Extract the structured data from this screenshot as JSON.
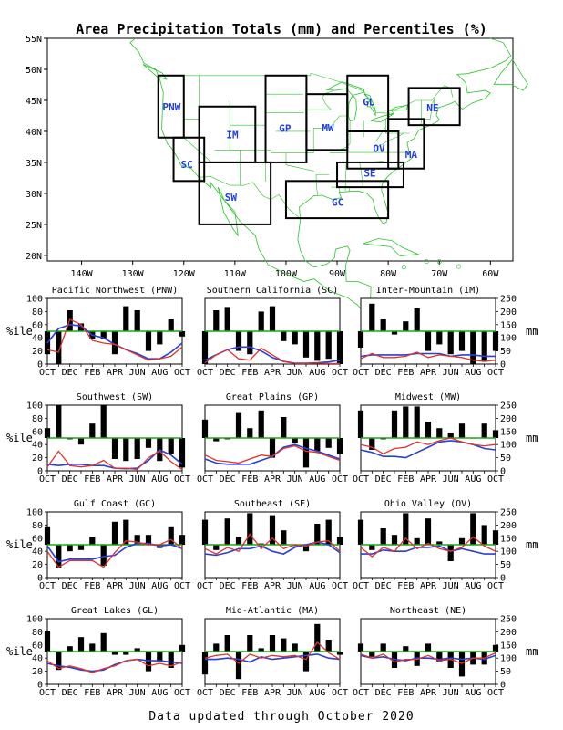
{
  "title": "Area Precipitation Totals (mm) and Percentiles (%)",
  "footer": "Data updated through October 2020",
  "map": {
    "lat_ticks": [
      "55N",
      "50N",
      "45N",
      "40N",
      "35N",
      "30N",
      "25N",
      "20N"
    ],
    "lon_ticks": [
      "140W",
      "130W",
      "120W",
      "110W",
      "100W",
      "90W",
      "80W",
      "70W",
      "60W"
    ],
    "regions": [
      "PNW",
      "SC",
      "IM",
      "SW",
      "GP",
      "MW",
      "GL",
      "OV",
      "SE",
      "GC",
      "MA",
      "NE"
    ]
  },
  "axis": {
    "left_label": "%ile",
    "right_label": "mm",
    "left_ticks": [
      "0",
      "20",
      "40",
      "60",
      "80",
      "100"
    ],
    "right_ticks": [
      "0",
      "50",
      "100",
      "150",
      "200",
      "250"
    ],
    "x_ticks": [
      "OCT",
      "DEC",
      "FEB",
      "APR",
      "JUN",
      "AUG",
      "OCT"
    ]
  },
  "colors": {
    "bars": "#000000",
    "line_actual": "#e0332b",
    "line_normal": "#2a3fd6",
    "reference": "#1ca81c",
    "map_lines": "#27c427",
    "boxes": "#000000",
    "region_labels": "#1f3de0"
  },
  "chart_data": [
    {
      "type": "bar",
      "title": "Pacific Northwest (PNW)",
      "months": [
        "OCT",
        "NOV",
        "DEC",
        "JAN",
        "FEB",
        "MAR",
        "APR",
        "MAY",
        "JUN",
        "JUL",
        "AUG",
        "SEP",
        "OCT"
      ],
      "percentiles": [
        15,
        0,
        82,
        62,
        38,
        38,
        15,
        88,
        82,
        20,
        30,
        68,
        42
      ],
      "precip_mm": [
        55,
        45,
        170,
        150,
        90,
        80,
        75,
        55,
        35,
        15,
        20,
        30,
        65
      ],
      "normal_mm": [
        80,
        135,
        150,
        145,
        110,
        100,
        75,
        55,
        40,
        20,
        20,
        45,
        80
      ],
      "ylim_pct": [
        0,
        100
      ],
      "ylim_mm": [
        0,
        250
      ]
    },
    {
      "type": "bar",
      "title": "Southern California (SC)",
      "months": [
        "OCT",
        "NOV",
        "DEC",
        "JAN",
        "FEB",
        "MAR",
        "APR",
        "MAY",
        "JUN",
        "JUL",
        "AUG",
        "SEP",
        "OCT"
      ],
      "percentiles": [
        0,
        82,
        87,
        20,
        15,
        80,
        88,
        35,
        30,
        10,
        5,
        8,
        0
      ],
      "precip_mm": [
        5,
        35,
        55,
        20,
        15,
        60,
        35,
        10,
        3,
        2,
        4,
        2,
        2
      ],
      "normal_mm": [
        15,
        35,
        55,
        65,
        65,
        50,
        25,
        10,
        3,
        3,
        5,
        8,
        15
      ],
      "ylim_pct": [
        0,
        100
      ],
      "ylim_mm": [
        0,
        250
      ]
    },
    {
      "type": "bar",
      "title": "Inter-Mountain (IM)",
      "months": [
        "OCT",
        "NOV",
        "DEC",
        "JAN",
        "FEB",
        "MAR",
        "APR",
        "MAY",
        "JUN",
        "JUL",
        "AUG",
        "SEP",
        "OCT"
      ],
      "percentiles": [
        25,
        92,
        68,
        45,
        65,
        85,
        20,
        30,
        15,
        20,
        0,
        5,
        20
      ],
      "precip_mm": [
        20,
        40,
        25,
        25,
        30,
        45,
        25,
        35,
        30,
        25,
        15,
        10,
        15
      ],
      "normal_mm": [
        30,
        35,
        35,
        35,
        35,
        40,
        40,
        40,
        30,
        35,
        35,
        30,
        30
      ],
      "ylim_pct": [
        0,
        100
      ],
      "ylim_mm": [
        0,
        250
      ]
    },
    {
      "type": "bar",
      "title": "Southwest (SW)",
      "months": [
        "OCT",
        "NOV",
        "DEC",
        "JAN",
        "FEB",
        "MAR",
        "APR",
        "MAY",
        "JUN",
        "JUL",
        "AUG",
        "SEP",
        "OCT"
      ],
      "percentiles": [
        65,
        100,
        48,
        40,
        72,
        100,
        18,
        15,
        18,
        35,
        15,
        25,
        5
      ],
      "precip_mm": [
        15,
        75,
        20,
        15,
        20,
        40,
        10,
        10,
        5,
        50,
        75,
        35,
        5
      ],
      "normal_mm": [
        25,
        20,
        25,
        25,
        20,
        20,
        10,
        8,
        10,
        40,
        80,
        60,
        25
      ],
      "ylim_pct": [
        0,
        100
      ],
      "ylim_mm": [
        0,
        250
      ]
    },
    {
      "type": "bar",
      "title": "Great Plains (GP)",
      "months": [
        "OCT",
        "NOV",
        "DEC",
        "JAN",
        "FEB",
        "MAR",
        "APR",
        "MAY",
        "JUN",
        "JUL",
        "AUG",
        "SEP",
        "OCT"
      ],
      "percentiles": [
        78,
        45,
        48,
        88,
        65,
        92,
        20,
        82,
        42,
        5,
        30,
        35,
        25
      ],
      "precip_mm": [
        60,
        40,
        35,
        30,
        45,
        60,
        55,
        85,
        95,
        75,
        70,
        55,
        40
      ],
      "normal_mm": [
        45,
        30,
        25,
        25,
        25,
        40,
        55,
        90,
        100,
        85,
        75,
        60,
        45
      ],
      "ylim_pct": [
        0,
        100
      ],
      "ylim_mm": [
        0,
        250
      ]
    },
    {
      "type": "bar",
      "title": "Midwest (MW)",
      "months": [
        "OCT",
        "NOV",
        "DEC",
        "JAN",
        "FEB",
        "MAR",
        "APR",
        "MAY",
        "JUN",
        "JUL",
        "AUG",
        "SEP",
        "OCT"
      ],
      "percentiles": [
        92,
        32,
        48,
        92,
        98,
        98,
        75,
        65,
        58,
        72,
        50,
        72,
        62
      ],
      "precip_mm": [
        100,
        90,
        65,
        85,
        90,
        110,
        100,
        115,
        125,
        110,
        100,
        95,
        100
      ],
      "normal_mm": [
        80,
        70,
        55,
        55,
        50,
        70,
        90,
        110,
        115,
        110,
        100,
        85,
        80
      ],
      "ylim_pct": [
        0,
        100
      ],
      "ylim_mm": [
        0,
        250
      ]
    },
    {
      "type": "bar",
      "title": "Gulf Coast (GC)",
      "months": [
        "OCT",
        "NOV",
        "DEC",
        "JAN",
        "FEB",
        "MAR",
        "APR",
        "MAY",
        "JUN",
        "JUL",
        "AUG",
        "SEP",
        "OCT"
      ],
      "percentiles": [
        78,
        15,
        40,
        42,
        62,
        18,
        85,
        88,
        65,
        65,
        45,
        78,
        65
      ],
      "precip_mm": [
        100,
        40,
        65,
        65,
        65,
        40,
        95,
        140,
        135,
        125,
        125,
        145,
        110
      ],
      "normal_mm": [
        120,
        60,
        70,
        70,
        70,
        80,
        85,
        115,
        130,
        130,
        120,
        125,
        110
      ],
      "ylim_pct": [
        0,
        100
      ],
      "ylim_mm": [
        0,
        250
      ]
    },
    {
      "type": "bar",
      "title": "Southeast (SE)",
      "months": [
        "OCT",
        "NOV",
        "DEC",
        "JAN",
        "FEB",
        "MAR",
        "APR",
        "MAY",
        "JUN",
        "JUL",
        "AUG",
        "SEP",
        "OCT"
      ],
      "percentiles": [
        88,
        42,
        90,
        62,
        98,
        52,
        95,
        72,
        48,
        40,
        82,
        88,
        62
      ],
      "precip_mm": [
        110,
        90,
        115,
        100,
        165,
        110,
        150,
        110,
        125,
        120,
        135,
        140,
        100
      ],
      "normal_mm": [
        90,
        85,
        95,
        110,
        110,
        120,
        100,
        90,
        115,
        125,
        135,
        125,
        95
      ],
      "ylim_pct": [
        0,
        100
      ],
      "ylim_mm": [
        0,
        250
      ]
    },
    {
      "type": "bar",
      "title": "Ohio Valley (OV)",
      "months": [
        "OCT",
        "NOV",
        "DEC",
        "JAN",
        "FEB",
        "MAR",
        "APR",
        "MAY",
        "JUN",
        "JUL",
        "AUG",
        "SEP",
        "OCT"
      ],
      "percentiles": [
        88,
        42,
        75,
        65,
        98,
        60,
        90,
        55,
        25,
        60,
        98,
        80,
        72
      ],
      "precip_mm": [
        115,
        80,
        115,
        100,
        150,
        110,
        130,
        110,
        100,
        115,
        155,
        120,
        100
      ],
      "normal_mm": [
        90,
        90,
        105,
        100,
        100,
        115,
        115,
        120,
        100,
        110,
        100,
        90,
        90
      ],
      "ylim_pct": [
        0,
        100
      ],
      "ylim_mm": [
        0,
        250
      ]
    },
    {
      "type": "bar",
      "title": "Great Lakes (GL)",
      "months": [
        "OCT",
        "NOV",
        "DEC",
        "JAN",
        "FEB",
        "MAR",
        "APR",
        "MAY",
        "JUN",
        "JUL",
        "AUG",
        "SEP",
        "OCT"
      ],
      "percentiles": [
        82,
        22,
        58,
        72,
        62,
        78,
        45,
        45,
        55,
        20,
        35,
        25,
        60
      ],
      "precip_mm": [
        90,
        60,
        70,
        60,
        45,
        60,
        70,
        90,
        95,
        70,
        80,
        70,
        85
      ],
      "normal_mm": [
        80,
        70,
        65,
        55,
        50,
        55,
        75,
        90,
        95,
        90,
        90,
        85,
        80
      ],
      "ylim_pct": [
        0,
        100
      ],
      "ylim_mm": [
        0,
        250
      ]
    },
    {
      "type": "bar",
      "title": "Mid-Atlantic (MA)",
      "months": [
        "OCT",
        "NOV",
        "DEC",
        "JAN",
        "FEB",
        "MAR",
        "APR",
        "MAY",
        "JUN",
        "JUL",
        "AUG",
        "SEP",
        "OCT"
      ],
      "percentiles": [
        15,
        62,
        75,
        8,
        75,
        55,
        75,
        70,
        62,
        20,
        92,
        68,
        45
      ],
      "precip_mm": [
        100,
        110,
        115,
        80,
        115,
        100,
        110,
        105,
        110,
        95,
        160,
        120,
        95
      ],
      "normal_mm": [
        95,
        95,
        100,
        95,
        85,
        105,
        95,
        100,
        105,
        110,
        115,
        100,
        95
      ],
      "ylim_pct": [
        0,
        100
      ],
      "ylim_mm": [
        0,
        250
      ]
    },
    {
      "type": "bar",
      "title": "Northeast (NE)",
      "months": [
        "OCT",
        "NOV",
        "DEC",
        "JAN",
        "FEB",
        "MAR",
        "APR",
        "MAY",
        "JUN",
        "JUL",
        "AUG",
        "SEP",
        "OCT"
      ],
      "percentiles": [
        62,
        42,
        62,
        25,
        58,
        28,
        62,
        35,
        25,
        12,
        30,
        30,
        60
      ],
      "precip_mm": [
        115,
        100,
        115,
        85,
        95,
        95,
        110,
        90,
        95,
        80,
        100,
        100,
        120
      ],
      "normal_mm": [
        110,
        100,
        105,
        95,
        90,
        100,
        100,
        95,
        100,
        95,
        100,
        95,
        110
      ],
      "ylim_pct": [
        0,
        100
      ],
      "ylim_mm": [
        0,
        250
      ]
    }
  ]
}
